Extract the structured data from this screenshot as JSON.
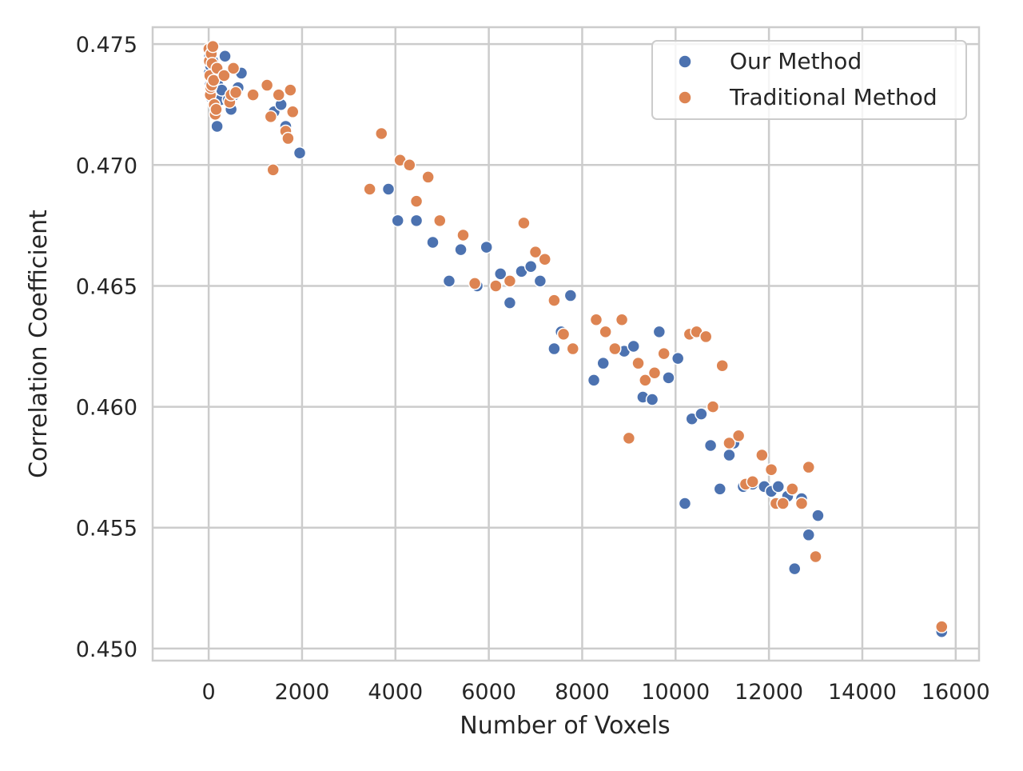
{
  "chart_data": {
    "type": "scatter",
    "xlabel": "Number of Voxels",
    "ylabel": "Correlation Coefficient",
    "xlim": [
      -1200,
      16500
    ],
    "ylim": [
      0.4495,
      0.4757
    ],
    "xticks": [
      0,
      2000,
      4000,
      6000,
      8000,
      10000,
      12000,
      14000,
      16000
    ],
    "xtick_labels": [
      "0",
      "2000",
      "4000",
      "6000",
      "8000",
      "10000",
      "12000",
      "14000",
      "16000"
    ],
    "yticks": [
      0.45,
      0.455,
      0.46,
      0.465,
      0.47,
      0.475
    ],
    "ytick_labels": [
      "0.450",
      "0.455",
      "0.460",
      "0.465",
      "0.470",
      "0.475"
    ],
    "grid": true,
    "legend_position": "top-right",
    "series": [
      {
        "name": "Our Method",
        "color": "#4c72b0",
        "points": [
          [
            10,
            0.4738
          ],
          [
            20,
            0.4745
          ],
          [
            30,
            0.4733
          ],
          [
            40,
            0.4741
          ],
          [
            50,
            0.4728
          ],
          [
            60,
            0.4747
          ],
          [
            70,
            0.4736
          ],
          [
            80,
            0.473
          ],
          [
            90,
            0.4743
          ],
          [
            100,
            0.4734
          ],
          [
            120,
            0.4726
          ],
          [
            150,
            0.4721
          ],
          [
            180,
            0.4716
          ],
          [
            200,
            0.4733
          ],
          [
            220,
            0.4738
          ],
          [
            250,
            0.4727
          ],
          [
            280,
            0.4731
          ],
          [
            350,
            0.4745
          ],
          [
            420,
            0.4727
          ],
          [
            480,
            0.4723
          ],
          [
            550,
            0.4729
          ],
          [
            630,
            0.4732
          ],
          [
            700,
            0.4738
          ],
          [
            1400,
            0.4722
          ],
          [
            1550,
            0.4725
          ],
          [
            1650,
            0.4716
          ],
          [
            1950,
            0.4705
          ],
          [
            3850,
            0.469
          ],
          [
            4050,
            0.4677
          ],
          [
            4450,
            0.4677
          ],
          [
            4800,
            0.4668
          ],
          [
            5150,
            0.4652
          ],
          [
            5400,
            0.4665
          ],
          [
            5750,
            0.465
          ],
          [
            5950,
            0.4666
          ],
          [
            6250,
            0.4655
          ],
          [
            6450,
            0.4643
          ],
          [
            6700,
            0.4656
          ],
          [
            6900,
            0.4658
          ],
          [
            7100,
            0.4652
          ],
          [
            7400,
            0.4624
          ],
          [
            7550,
            0.4631
          ],
          [
            7750,
            0.4646
          ],
          [
            8250,
            0.4611
          ],
          [
            8450,
            0.4618
          ],
          [
            8900,
            0.4623
          ],
          [
            9100,
            0.4625
          ],
          [
            9300,
            0.4604
          ],
          [
            9500,
            0.4603
          ],
          [
            9650,
            0.4631
          ],
          [
            9850,
            0.4612
          ],
          [
            10050,
            0.462
          ],
          [
            10200,
            0.456
          ],
          [
            10350,
            0.4595
          ],
          [
            10550,
            0.4597
          ],
          [
            10750,
            0.4584
          ],
          [
            10950,
            0.4566
          ],
          [
            11150,
            0.458
          ],
          [
            11250,
            0.4585
          ],
          [
            11450,
            0.4567
          ],
          [
            11650,
            0.4568
          ],
          [
            11900,
            0.4567
          ],
          [
            12050,
            0.4565
          ],
          [
            12200,
            0.4567
          ],
          [
            12400,
            0.4563
          ],
          [
            12550,
            0.4533
          ],
          [
            12700,
            0.4562
          ],
          [
            12850,
            0.4547
          ],
          [
            13050,
            0.4555
          ],
          [
            15700,
            0.4507
          ]
        ]
      },
      {
        "name": "Traditional Method",
        "color": "#dd8452",
        "points": [
          [
            5,
            0.4748
          ],
          [
            15,
            0.4743
          ],
          [
            25,
            0.4737
          ],
          [
            35,
            0.4729
          ],
          [
            45,
            0.4732
          ],
          [
            55,
            0.4746
          ],
          [
            65,
            0.4733
          ],
          [
            75,
            0.4742
          ],
          [
            90,
            0.4749
          ],
          [
            105,
            0.4735
          ],
          [
            120,
            0.4725
          ],
          [
            140,
            0.4721
          ],
          [
            160,
            0.4723
          ],
          [
            180,
            0.474
          ],
          [
            330,
            0.4737
          ],
          [
            450,
            0.4726
          ],
          [
            480,
            0.4729
          ],
          [
            530,
            0.474
          ],
          [
            580,
            0.473
          ],
          [
            950,
            0.4729
          ],
          [
            1250,
            0.4733
          ],
          [
            1330,
            0.472
          ],
          [
            1380,
            0.4698
          ],
          [
            1500,
            0.4729
          ],
          [
            1650,
            0.4714
          ],
          [
            1700,
            0.4711
          ],
          [
            1750,
            0.4731
          ],
          [
            1800,
            0.4722
          ],
          [
            3450,
            0.469
          ],
          [
            3700,
            0.4713
          ],
          [
            4100,
            0.4702
          ],
          [
            4300,
            0.47
          ],
          [
            4450,
            0.4685
          ],
          [
            4700,
            0.4695
          ],
          [
            4950,
            0.4677
          ],
          [
            5450,
            0.4671
          ],
          [
            5700,
            0.4651
          ],
          [
            6150,
            0.465
          ],
          [
            6450,
            0.4652
          ],
          [
            6750,
            0.4676
          ],
          [
            7000,
            0.4664
          ],
          [
            7200,
            0.4661
          ],
          [
            7400,
            0.4644
          ],
          [
            7600,
            0.463
          ],
          [
            7800,
            0.4624
          ],
          [
            8300,
            0.4636
          ],
          [
            8500,
            0.4631
          ],
          [
            8700,
            0.4624
          ],
          [
            8850,
            0.4636
          ],
          [
            9000,
            0.4587
          ],
          [
            9200,
            0.4618
          ],
          [
            9350,
            0.4611
          ],
          [
            9550,
            0.4614
          ],
          [
            9750,
            0.4622
          ],
          [
            10300,
            0.463
          ],
          [
            10450,
            0.4631
          ],
          [
            10650,
            0.4629
          ],
          [
            10800,
            0.46
          ],
          [
            11000,
            0.4617
          ],
          [
            11150,
            0.4585
          ],
          [
            11350,
            0.4588
          ],
          [
            11500,
            0.4568
          ],
          [
            11650,
            0.4569
          ],
          [
            11850,
            0.458
          ],
          [
            12050,
            0.4574
          ],
          [
            12150,
            0.456
          ],
          [
            12300,
            0.456
          ],
          [
            12500,
            0.4566
          ],
          [
            12700,
            0.456
          ],
          [
            12850,
            0.4575
          ],
          [
            13000,
            0.4538
          ],
          [
            15700,
            0.4509
          ]
        ]
      }
    ]
  }
}
